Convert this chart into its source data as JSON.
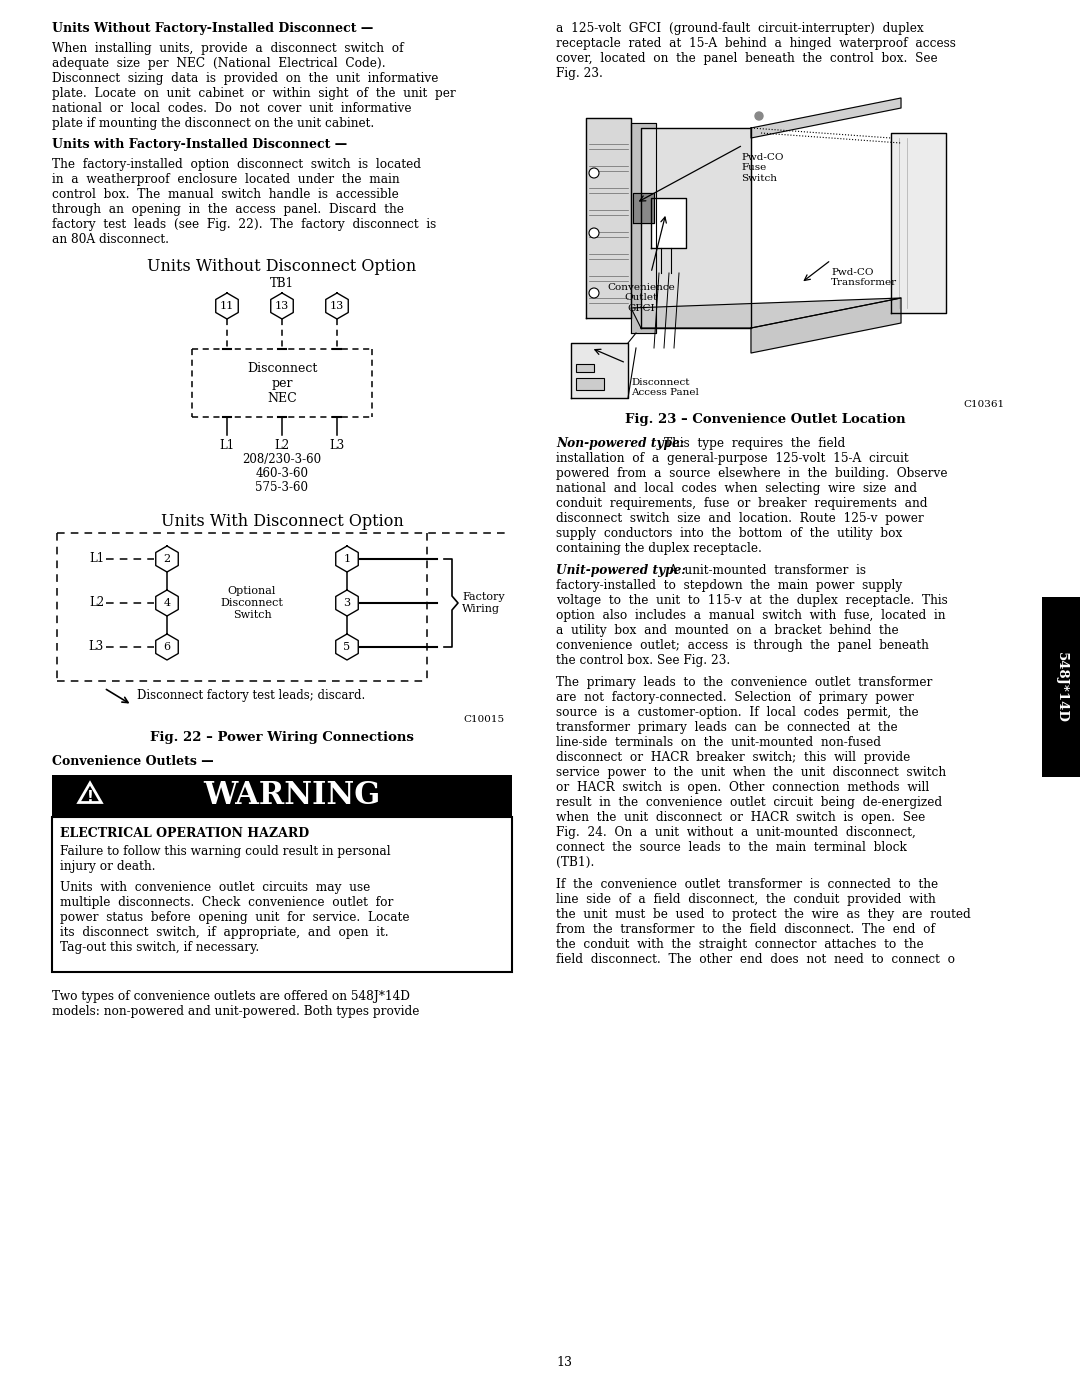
{
  "section1_heading": "Units Without Factory-Installed Disconnect —",
  "section2_heading": "Units with Factory-Installed Disconnect —",
  "diag1_title": "Units Without Disconnect Option",
  "diag1_tb1": "TB1",
  "diag1_nodes_top": [
    "11",
    "13",
    "13"
  ],
  "diag1_labels_bottom": [
    "L1",
    "L2",
    "L3"
  ],
  "diag1_voltages": [
    "208/230-3-60",
    "460-3-60",
    "575-3-60"
  ],
  "diag2_title": "Units With Disconnect Option",
  "diag2_left_labels": [
    "L1",
    "L2",
    "L3"
  ],
  "diag2_left_nodes": [
    "2",
    "4",
    "6"
  ],
  "diag2_right_nodes": [
    "1",
    "3",
    "5"
  ],
  "fig22_caption": "Fig. 22 – Power Wiring Connections",
  "convenience_heading": "Convenience Outlets —",
  "warning_title": "WARNING",
  "warning_subtitle": "ELECTRICAL OPERATION HAZARD",
  "fig23_caption": "Fig. 23 – Convenience Outlet Location",
  "fig23_note": "C10361",
  "diag2_fig_note": "C10015",
  "page_number": "13",
  "tab_label": "548J*14D",
  "colors": {
    "black": "#000000",
    "white": "#ffffff",
    "tab_bg": "#000000",
    "tab_text": "#ffffff"
  }
}
